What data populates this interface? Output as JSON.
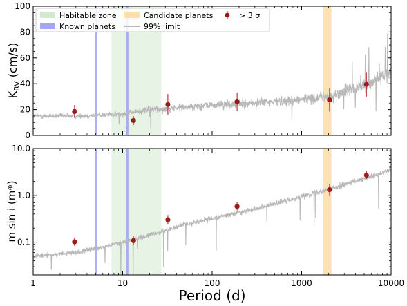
{
  "chart_data": [
    {
      "panel": "top",
      "type": "scatter",
      "xscale": "log",
      "xlim": [
        1,
        10000
      ],
      "ylim": [
        0,
        100
      ],
      "ylabel_main": "K",
      "ylabel_sub": "RV",
      "ylabel_unit": " (cm/s)",
      "yticks": [
        0,
        20,
        40,
        60,
        80,
        100
      ],
      "ytick_labels": [
        "0",
        "20",
        "40",
        "60",
        "80",
        "100"
      ],
      "bands": [
        {
          "kind": "habitable",
          "x": [
            7.5,
            27
          ],
          "color": "#c9e4c5"
        },
        {
          "kind": "known",
          "x": [
            4.9,
            5.2
          ],
          "color": "#8f8ff0"
        },
        {
          "kind": "known",
          "x": [
            10.9,
            11.6
          ],
          "color": "#8f8ff0"
        },
        {
          "kind": "candidate",
          "x": [
            1750,
            2150
          ],
          "color": "#fbd79b"
        }
      ],
      "limit_anchors": [
        [
          1,
          15
        ],
        [
          3,
          15
        ],
        [
          8,
          16
        ],
        [
          20,
          20
        ],
        [
          50,
          22
        ],
        [
          150,
          24
        ],
        [
          500,
          26
        ],
        [
          1000,
          28
        ],
        [
          2000,
          30
        ],
        [
          4000,
          36
        ],
        [
          7000,
          44
        ],
        [
          10000,
          50
        ]
      ],
      "limit_color": "#b9b9b9",
      "points": [
        {
          "x": 2.9,
          "y": 18.5,
          "yerr": 5
        },
        {
          "x": 13.2,
          "y": 11.5,
          "yerr": 3.5
        },
        {
          "x": 32,
          "y": 24,
          "yerr": 8
        },
        {
          "x": 190,
          "y": 26,
          "yerr": 7
        },
        {
          "x": 2050,
          "y": 27.5,
          "yerr": 9
        },
        {
          "x": 5300,
          "y": 39.5,
          "yerr": 9.5
        }
      ],
      "point_color": "#9b1b1b"
    },
    {
      "panel": "bottom",
      "type": "scatter",
      "xscale": "log",
      "yscale": "log",
      "xlim": [
        1,
        10000
      ],
      "ylim": [
        0.02,
        10
      ],
      "xlabel": "Period (d)",
      "ylabel": "m sin i (m",
      "ylabel_symbol": "⊕",
      "ylabel_close": ")",
      "xticks": [
        1,
        10,
        100,
        1000,
        10000
      ],
      "xtick_labels": [
        "1",
        "10",
        "100",
        "1000",
        "10000"
      ],
      "yticks": [
        0.1,
        1,
        10
      ],
      "ytick_labels": [
        "0.1",
        "1.0",
        "10.0"
      ],
      "limit_anchors": [
        [
          1,
          0.05
        ],
        [
          3,
          0.06
        ],
        [
          8,
          0.09
        ],
        [
          20,
          0.14
        ],
        [
          50,
          0.24
        ],
        [
          150,
          0.38
        ],
        [
          500,
          0.65
        ],
        [
          1000,
          0.95
        ],
        [
          2000,
          1.35
        ],
        [
          4000,
          2.0
        ],
        [
          7000,
          2.7
        ],
        [
          10000,
          3.6
        ]
      ],
      "limit_color": "#b9b9b9",
      "points": [
        {
          "x": 2.9,
          "y": 0.102,
          "yerr_lo": 0.018,
          "yerr_hi": 0.025
        },
        {
          "x": 13.2,
          "y": 0.108,
          "yerr_lo": 0.02,
          "yerr_hi": 0.028
        },
        {
          "x": 32,
          "y": 0.3,
          "yerr_lo": 0.06,
          "yerr_hi": 0.08
        },
        {
          "x": 190,
          "y": 0.58,
          "yerr_lo": 0.1,
          "yerr_hi": 0.14
        },
        {
          "x": 2050,
          "y": 1.32,
          "yerr_lo": 0.35,
          "yerr_hi": 0.45
        },
        {
          "x": 5300,
          "y": 2.7,
          "yerr_lo": 0.45,
          "yerr_hi": 0.6
        }
      ],
      "point_color": "#9b1b1b"
    }
  ],
  "legend": {
    "entries": [
      {
        "label": "Habitable zone",
        "kind": "patch",
        "color": "#c9e4c5"
      },
      {
        "label": "Known planets",
        "kind": "patch",
        "color": "#8f8ff0"
      },
      {
        "label": "Candidate planets",
        "kind": "patch",
        "color": "#fbd79b"
      },
      {
        "label": "99% limit",
        "kind": "line",
        "color": "#b9b9b9"
      },
      {
        "label": "> 3 σ",
        "kind": "marker",
        "color": "#9b1b1b"
      }
    ]
  }
}
